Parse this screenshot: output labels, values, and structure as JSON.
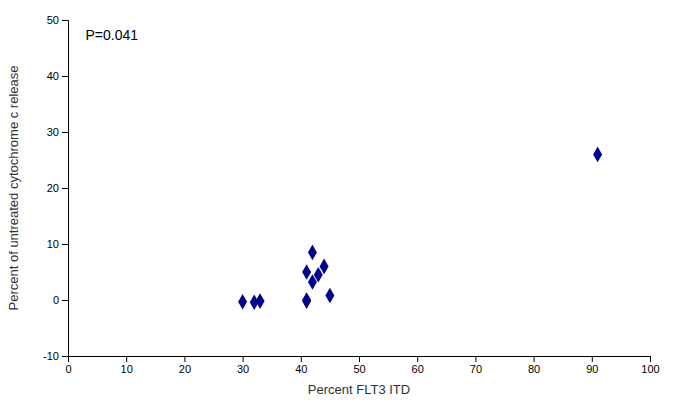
{
  "chart_data": {
    "type": "scatter",
    "x": [
      30,
      32,
      33,
      41,
      41,
      41,
      42,
      42,
      43,
      44,
      45,
      91
    ],
    "values": [
      -0.3,
      -0.4,
      -0.2,
      0.0,
      -0.2,
      5.0,
      8.5,
      3.2,
      4.5,
      6.0,
      0.8,
      26.0
    ],
    "xlabel": "Percent FLT3 ITD",
    "ylabel": "Percent of untreated cytochrome c release",
    "annotation": "P=0.041",
    "xlim": [
      0,
      100
    ],
    "ylim": [
      -10,
      50
    ],
    "xticks": [
      0,
      10,
      20,
      30,
      40,
      50,
      60,
      70,
      80,
      90,
      100
    ],
    "yticks": [
      -10,
      0,
      10,
      20,
      30,
      40,
      50
    ],
    "color": "#00008B",
    "marker": "diamond",
    "grid": false
  }
}
